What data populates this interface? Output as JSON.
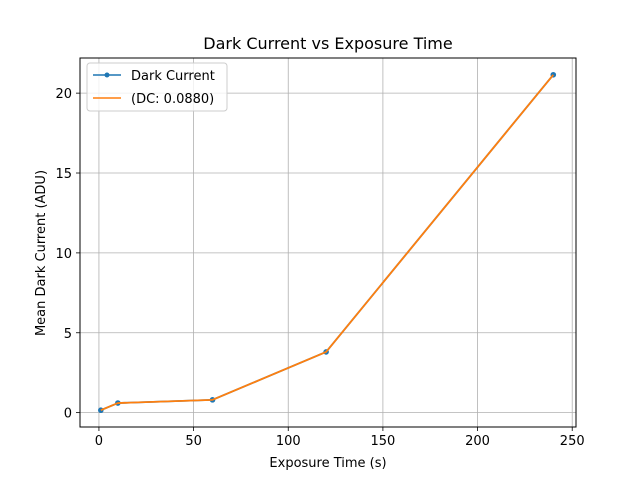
{
  "chart_data": {
    "type": "line",
    "title": "Dark Current vs Exposure Time",
    "xlabel": "Exposure Time (s)",
    "ylabel": "Mean Dark Current (ADU)",
    "xlim": [
      -10,
      252
    ],
    "ylim": [
      -0.9,
      22.2
    ],
    "xticks": [
      0,
      50,
      100,
      150,
      200,
      250
    ],
    "yticks": [
      0,
      5,
      10,
      15,
      20
    ],
    "grid": true,
    "legend_position": "top-left",
    "series": [
      {
        "name": "Dark Current",
        "color": "#1f77b4",
        "marker": "circle",
        "x": [
          1,
          10,
          60,
          120,
          240
        ],
        "y": [
          0.15,
          0.6,
          0.8,
          3.8,
          21.15
        ]
      },
      {
        "name": "(DC: 0.0880)",
        "color": "#ff7f0e",
        "marker": "none",
        "x": [
          1,
          10,
          60,
          120,
          240
        ],
        "y": [
          0.15,
          0.6,
          0.8,
          3.8,
          21.15
        ]
      }
    ]
  }
}
